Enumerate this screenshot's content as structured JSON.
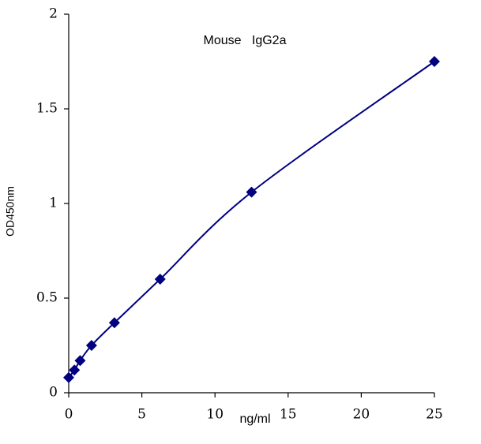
{
  "chart_data": {
    "type": "line",
    "title": "Mouse   IgG2a",
    "x_label": "ng/ml",
    "y_label": "OD450nm",
    "x": [
      0,
      0.39,
      0.78,
      1.56,
      3.125,
      6.25,
      12.5,
      25
    ],
    "series": [
      {
        "name": "IgG2a",
        "color": "#000080",
        "values": [
          0.08,
          0.12,
          0.17,
          0.25,
          0.37,
          0.6,
          1.06,
          1.75
        ]
      }
    ],
    "xlim": [
      0,
      25
    ],
    "xticks": [
      0,
      5,
      10,
      15,
      20,
      25
    ],
    "ylim": [
      0,
      2
    ],
    "yticks": [
      0,
      0.5,
      1,
      1.5,
      2
    ],
    "grid": false
  }
}
